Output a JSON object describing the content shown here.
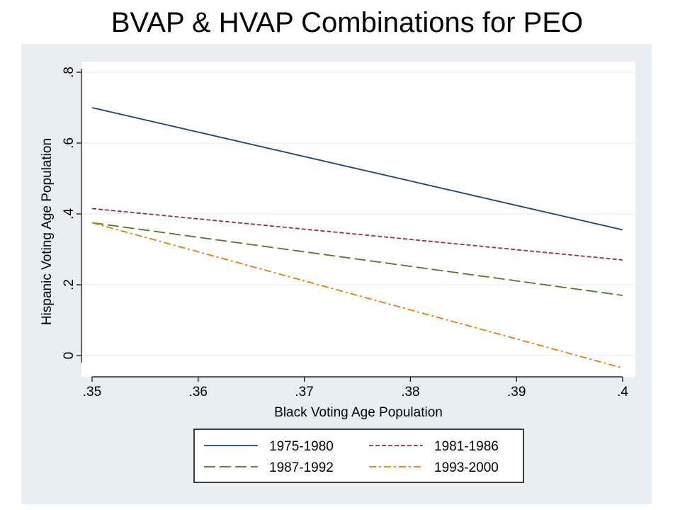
{
  "slide": {
    "title": "BVAP & HVAP Combinations for PEO"
  },
  "chart_data": {
    "type": "line",
    "title": "",
    "xlabel": "Black Voting Age Population",
    "ylabel": "Hispanic Voting Age Population",
    "xlim": [
      0.35,
      0.4
    ],
    "ylim": [
      -0.03,
      0.8
    ],
    "x_ticks": [
      0.35,
      0.36,
      0.37,
      0.38,
      0.39,
      0.4
    ],
    "x_tick_labels": [
      ".35",
      ".36",
      ".37",
      ".38",
      ".39",
      ".4"
    ],
    "y_ticks": [
      0,
      0.2,
      0.4,
      0.6,
      0.8
    ],
    "y_tick_labels": [
      "0",
      ".2",
      ".4",
      ".6",
      ".8"
    ],
    "grid": "horizontal",
    "legend_position": "bottom",
    "series": [
      {
        "name": "1975-1980",
        "x": [
          0.35,
          0.4
        ],
        "y": [
          0.7,
          0.355
        ],
        "color": "#1a476f",
        "dash": "solid"
      },
      {
        "name": "1981-1986",
        "x": [
          0.35,
          0.4
        ],
        "y": [
          0.415,
          0.27
        ],
        "color": "#90353b",
        "dash": "short-dash"
      },
      {
        "name": "1987-1992",
        "x": [
          0.35,
          0.4
        ],
        "y": [
          0.375,
          0.17
        ],
        "color": "#55752f",
        "dash": "long-dash"
      },
      {
        "name": "1993-2000",
        "x": [
          0.35,
          0.4
        ],
        "y": [
          0.375,
          -0.035
        ],
        "color": "#e37e00",
        "dash": "dash-dot"
      }
    ]
  }
}
